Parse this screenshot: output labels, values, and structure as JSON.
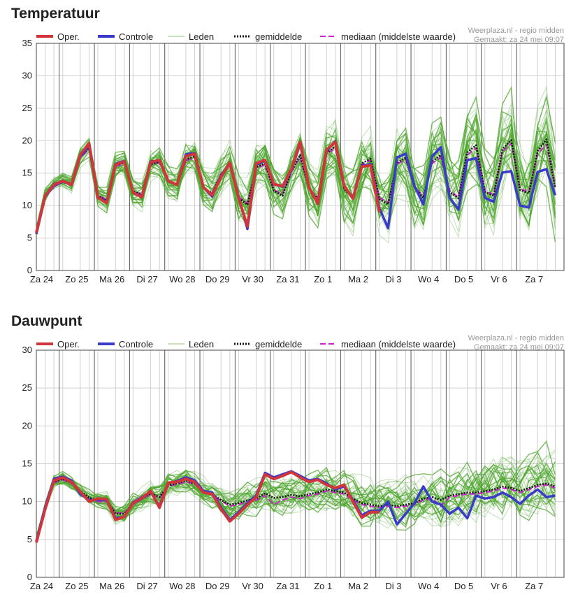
{
  "colors": {
    "oper": "#d0353b",
    "controle": "#3b3bc9",
    "leden": "#4da62e",
    "gemiddelde": "#111111",
    "mediaan": "#cc22cc",
    "grid_major": "#555555",
    "grid_minor": "#d0d0d0"
  },
  "legend": {
    "oper": "Oper.",
    "controle": "Controle",
    "leden": "Leden",
    "gemiddelde": "gemiddelde",
    "mediaan": "mediaan (middelste waarde)"
  },
  "source": {
    "line1": "Weerplaza.nl - regio midden",
    "line2": "Gemaakt: za 24 mei 09:07"
  },
  "chart_data": [
    {
      "type": "line",
      "title": "Temperatuur",
      "ylim": [
        0,
        35
      ],
      "yticks": [
        0,
        5,
        10,
        15,
        20,
        25,
        30,
        35
      ],
      "grid": true,
      "legend_position": "top",
      "x_labels": [
        "Za 24",
        "Zo 25",
        "Ma 26",
        "Di 27",
        "Wo 28",
        "Do 29",
        "Vr 30",
        "Za 31",
        "Zo 1",
        "Ma 2",
        "Di 3",
        "Wo 4",
        "Do 5",
        "Vr 6",
        "Za 7"
      ],
      "series": [
        {
          "name": "Oper.",
          "values": [
            5.8,
            11.5,
            13.2,
            13.8,
            13.2,
            17.8,
            19.6,
            11.2,
            10.4,
            16.3,
            16.8,
            12.0,
            11.3,
            16.7,
            17.0,
            13.8,
            13.2,
            17.6,
            18.0,
            12.8,
            11.6,
            14.4,
            16.6,
            11.2,
            6.8,
            16.5,
            17.0,
            13.3,
            13.0,
            15.6,
            19.8,
            12.8,
            10.3,
            18.6,
            19.8,
            13.0,
            11.1,
            16.0,
            16.2,
            9.0
          ]
        },
        {
          "name": "Controle",
          "values": [
            5.6,
            11.4,
            13.0,
            13.7,
            13.2,
            17.6,
            19.2,
            11.2,
            10.6,
            16.4,
            16.9,
            12.0,
            11.4,
            16.8,
            16.9,
            13.8,
            13.2,
            17.9,
            18.1,
            12.8,
            11.4,
            14.6,
            16.6,
            11.4,
            6.4,
            16.3,
            16.9,
            13.3,
            12.9,
            15.4,
            19.6,
            12.8,
            10.3,
            18.4,
            19.9,
            13.0,
            11.2,
            16.1,
            16.4,
            9.6,
            6.5,
            17.4,
            18.0,
            13.0,
            10.2,
            17.6,
            19.0,
            11.2,
            9.4,
            17.0,
            17.3,
            11.2,
            10.6,
            15.1,
            15.3,
            10.0,
            9.7,
            15.2,
            15.6,
            11.6
          ]
        },
        {
          "name": "gemiddelde",
          "values": [
            6.0,
            11.6,
            13.3,
            13.8,
            13.3,
            17.5,
            18.9,
            11.5,
            10.8,
            16.2,
            16.6,
            12.2,
            11.6,
            16.4,
            16.7,
            13.7,
            13.3,
            17.1,
            17.6,
            12.7,
            11.9,
            14.8,
            16.4,
            11.2,
            10.1,
            15.9,
            16.5,
            12.3,
            11.5,
            15.3,
            17.8,
            12.6,
            11.0,
            18.1,
            19.1,
            12.5,
            11.2,
            16.5,
            17.2,
            11.0,
            10.2,
            16.6,
            17.4,
            12.8,
            11.2,
            16.8,
            17.8,
            12.1,
            11.1,
            18.2,
            19.3,
            12.1,
            11.5,
            18.7,
            20.1,
            12.4,
            11.9,
            18.4,
            20.2,
            12.7
          ]
        },
        {
          "name": "mediaan (middelste waarde)",
          "values": [
            6.1,
            11.7,
            13.4,
            13.9,
            13.4,
            17.4,
            18.7,
            11.6,
            10.9,
            16.0,
            16.5,
            12.3,
            11.7,
            16.3,
            16.6,
            13.6,
            13.4,
            16.9,
            17.4,
            12.6,
            12.0,
            14.9,
            16.3,
            11.3,
            10.4,
            15.7,
            16.3,
            12.4,
            11.8,
            15.2,
            17.5,
            12.7,
            11.2,
            17.9,
            18.9,
            12.6,
            11.4,
            16.3,
            17.0,
            11.2,
            10.5,
            16.4,
            17.1,
            12.9,
            11.4,
            16.5,
            17.4,
            12.3,
            11.3,
            17.8,
            18.9,
            12.3,
            11.7,
            18.3,
            19.6,
            12.6,
            12.1,
            18.0,
            19.4,
            12.9
          ]
        }
      ]
    },
    {
      "type": "line",
      "title": "Dauwpunt",
      "ylim": [
        0,
        30
      ],
      "yticks": [
        0,
        5,
        10,
        15,
        20,
        25,
        30
      ],
      "grid": true,
      "legend_position": "top",
      "x_labels": [
        "Za 24",
        "Zo 25",
        "Ma 26",
        "Di 27",
        "Wo 28",
        "Do 29",
        "Vr 30",
        "Za 31",
        "Zo 1",
        "Ma 2",
        "Di 3",
        "Wo 4",
        "Do 5",
        "Vr 6",
        "Za 7"
      ],
      "series": [
        {
          "name": "Oper.",
          "values": [
            4.6,
            9.0,
            12.8,
            13.2,
            12.6,
            11.3,
            10.0,
            10.4,
            10.3,
            7.6,
            8.0,
            9.8,
            10.5,
            11.4,
            9.2,
            12.5,
            12.6,
            13.0,
            12.6,
            11.2,
            11.0,
            9.0,
            7.4,
            8.4,
            9.6,
            10.6,
            13.6,
            13.0,
            13.4,
            13.9,
            13.2,
            12.6,
            12.9,
            12.2,
            11.8,
            12.2,
            10.0,
            7.9,
            8.6,
            8.6
          ]
        },
        {
          "name": "Controle",
          "values": [
            4.8,
            9.3,
            13.0,
            13.3,
            12.8,
            11.0,
            10.2,
            10.2,
            10.2,
            7.8,
            8.0,
            9.9,
            10.6,
            11.3,
            9.4,
            12.4,
            12.7,
            13.2,
            12.8,
            11.4,
            11.2,
            9.2,
            7.6,
            8.6,
            9.8,
            10.8,
            13.8,
            13.2,
            13.6,
            14.0,
            13.4,
            12.8,
            13.0,
            12.4,
            11.6,
            12.0,
            10.2,
            8.2,
            8.8,
            8.8,
            10.0,
            7.0,
            8.4,
            9.8,
            12.0,
            10.0,
            9.6,
            8.4,
            9.2,
            7.8,
            10.8,
            10.4,
            10.6,
            11.2,
            10.6,
            9.7,
            10.8,
            11.6,
            10.6,
            10.8
          ]
        },
        {
          "name": "gemiddelde",
          "values": [
            5.0,
            9.2,
            12.6,
            13.0,
            12.5,
            11.4,
            10.5,
            10.2,
            10.1,
            8.4,
            8.4,
            9.7,
            10.4,
            11.1,
            10.6,
            12.1,
            12.4,
            12.8,
            12.4,
            11.4,
            11.0,
            10.2,
            9.6,
            9.8,
            10.2,
            10.4,
            11.1,
            10.5,
            10.6,
            10.9,
            10.7,
            11.0,
            11.2,
            11.6,
            11.4,
            11.2,
            10.4,
            9.8,
            9.6,
            9.4,
            9.6,
            9.4,
            9.6,
            9.8,
            10.4,
            10.6,
            10.2,
            10.8,
            11.0,
            11.2,
            11.2,
            11.4,
            11.6,
            12.0,
            11.8,
            11.4,
            11.8,
            12.2,
            12.4,
            12.0
          ]
        },
        {
          "name": "mediaan (middelste waarde)",
          "values": [
            5.1,
            9.1,
            12.5,
            12.9,
            12.4,
            11.3,
            10.4,
            10.0,
            10.0,
            8.5,
            8.5,
            9.6,
            10.3,
            11.0,
            10.5,
            12.0,
            12.3,
            12.6,
            12.3,
            11.3,
            10.9,
            10.1,
            9.4,
            9.6,
            10.0,
            10.2,
            10.8,
            9.6,
            10.2,
            10.6,
            10.4,
            10.8,
            11.0,
            11.4,
            11.2,
            11.0,
            10.2,
            9.6,
            9.4,
            9.2,
            9.4,
            9.2,
            9.4,
            9.6,
            10.2,
            10.4,
            9.4,
            10.6,
            10.8,
            11.0,
            11.0,
            11.2,
            11.4,
            11.8,
            11.6,
            11.2,
            11.6,
            12.0,
            12.2,
            11.8
          ]
        }
      ]
    }
  ]
}
